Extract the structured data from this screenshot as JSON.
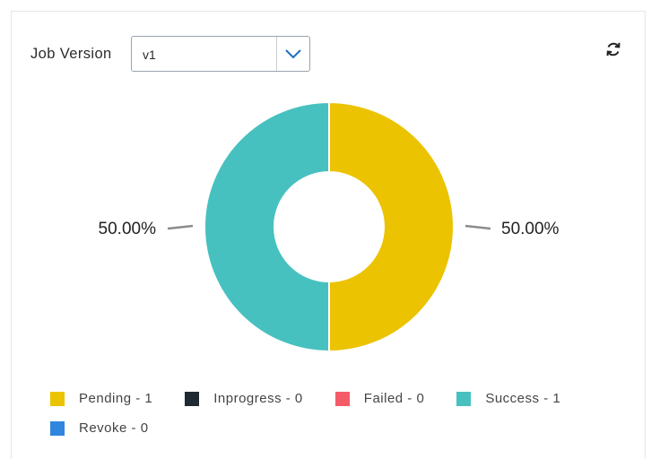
{
  "filter": {
    "label": "Job Version",
    "selected": "v1"
  },
  "icons": {
    "dropdown": "chevron-down-icon",
    "refresh": "refresh-icon"
  },
  "legend": {
    "items": [
      {
        "label": "Pending - 1",
        "color": "#ECC300"
      },
      {
        "label": "Inprogress - 0",
        "color": "#1F2A33"
      },
      {
        "label": "Failed - 0",
        "color": "#F45B69"
      },
      {
        "label": "Success - 1",
        "color": "#47C1BF"
      },
      {
        "label": "Revoke - 0",
        "color": "#2F86DE"
      }
    ]
  },
  "chart_data": {
    "type": "pie",
    "donut": true,
    "categories": [
      "Pending",
      "Inprogress",
      "Failed",
      "Success",
      "Revoke"
    ],
    "values": [
      1,
      0,
      0,
      1,
      0
    ],
    "colors": [
      "#ECC300",
      "#1F2A33",
      "#F45B69",
      "#47C1BF",
      "#2F86DE"
    ],
    "data_labels": [
      {
        "category": "Pending",
        "text": "50.00%"
      },
      {
        "category": "Success",
        "text": "50.00%"
      }
    ],
    "legend_position": "bottom"
  }
}
